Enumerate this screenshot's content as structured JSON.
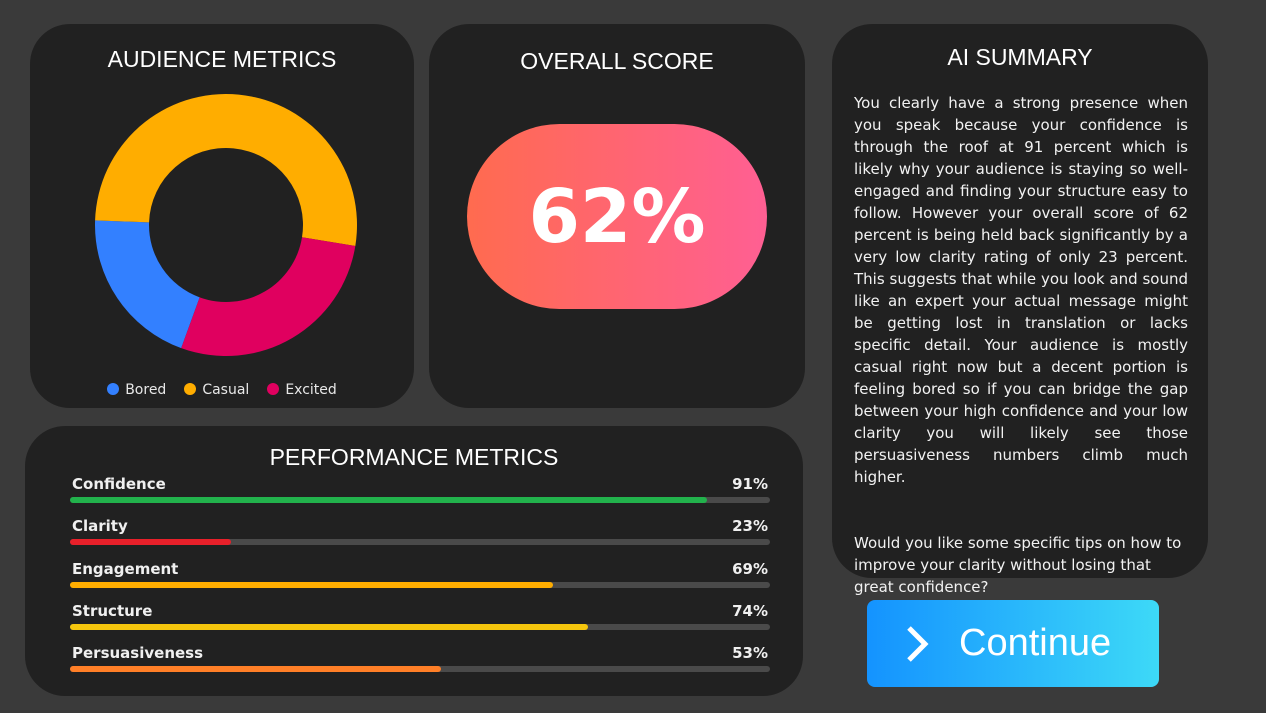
{
  "audience": {
    "title": "AUDIENCE METRICS",
    "chart_data": {
      "type": "pie",
      "variant": "doughnut",
      "title": "AUDIENCE METRICS",
      "categories": [
        "Bored",
        "Casual",
        "Excited"
      ],
      "values": [
        20,
        52,
        28
      ],
      "colors": [
        "#3380ff",
        "#ffad00",
        "#e0005f"
      ],
      "legend": "bottom"
    }
  },
  "score": {
    "title": "OVERALL SCORE",
    "value": "62%"
  },
  "performance": {
    "title": "PERFORMANCE METRICS",
    "metrics": [
      {
        "label": "Confidence",
        "value": "91%",
        "pct": 91,
        "color": "#22b24c"
      },
      {
        "label": "Clarity",
        "value": "23%",
        "pct": 23,
        "color": "#e8202a"
      },
      {
        "label": "Engagement",
        "value": "69%",
        "pct": 69,
        "color": "#ffad00"
      },
      {
        "label": "Structure",
        "value": "74%",
        "pct": 74,
        "color": "#f5c60d"
      },
      {
        "label": "Persuasiveness",
        "value": "53%",
        "pct": 53,
        "color": "#ff7f27"
      }
    ]
  },
  "ai": {
    "title": "AI SUMMARY",
    "p1": "You clearly have a strong presence when you speak because your confidence is through the roof at 91 percent which is likely why your audience is staying so well-engaged and finding your structure easy to follow. However your overall score of 62 percent is being held back significantly by a very low clarity rating of only 23 percent. This suggests that while you look and sound like an expert your actual message might be getting lost in translation or lacks specific detail. Your audience is mostly casual right now but a decent portion is feeling bored so if you can bridge the gap between your high confidence and your low clarity you will likely see those persuasiveness numbers climb much higher.",
    "p2": "Would you like some specific tips on how to improve your clarity without losing that great confidence?"
  },
  "continue_label": "Continue"
}
